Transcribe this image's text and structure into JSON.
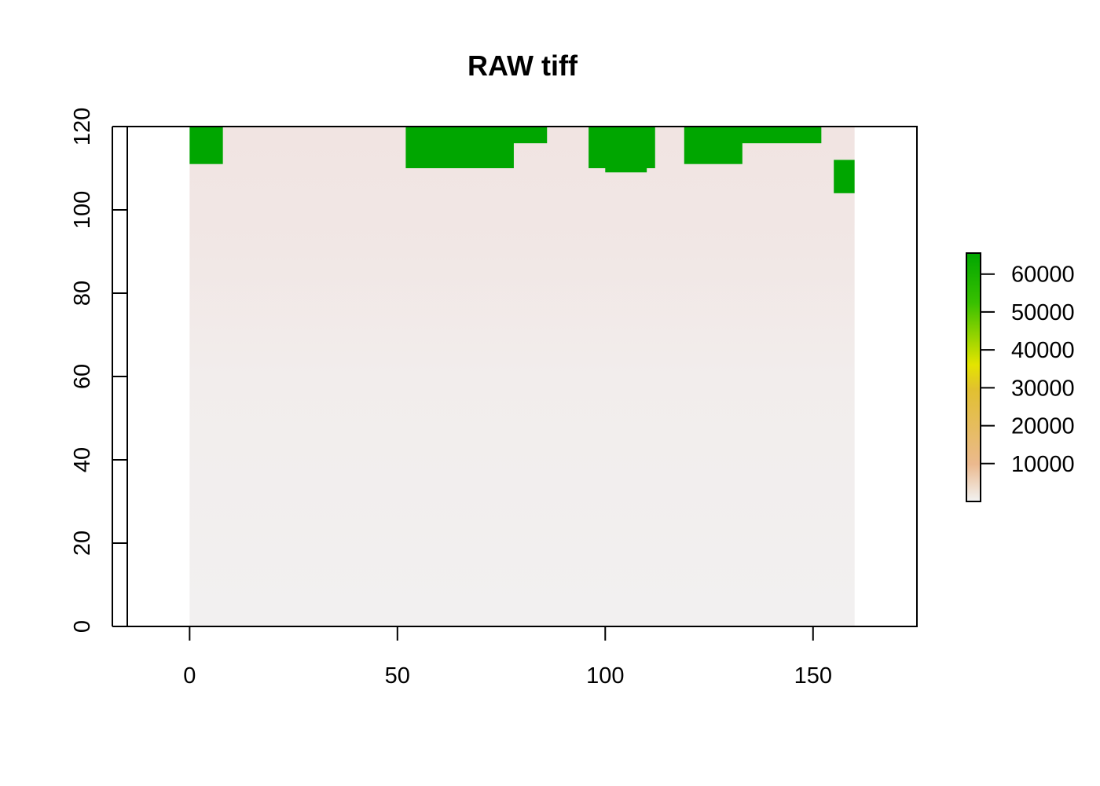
{
  "chart_data": {
    "type": "heatmap",
    "title": "RAW tiff",
    "xlabel": "",
    "ylabel": "",
    "xlim": [
      -15,
      175
    ],
    "ylim": [
      0,
      120
    ],
    "x_ticks": [
      0,
      50,
      100,
      150
    ],
    "y_ticks": [
      0,
      20,
      40,
      60,
      80,
      100,
      120
    ],
    "raster_extent": {
      "x": [
        0,
        160
      ],
      "y": [
        0,
        120
      ]
    },
    "grid": false,
    "legend": {
      "placement": "right",
      "ticks": [
        10000,
        20000,
        30000,
        40000,
        50000,
        60000
      ],
      "range": [
        0,
        65535
      ]
    },
    "colors": {
      "low": "#F2F2F2",
      "pale": "#F0E4E2",
      "mid_low": "#EBB98E",
      "mid": "#E1C030",
      "mid_high": "#E4E400",
      "high": "#00A600"
    },
    "background_value": 3500,
    "upper_band_value": 5500,
    "saturated_value": 65535,
    "saturated_regions": [
      {
        "x": [
          0,
          8
        ],
        "y": [
          111,
          120
        ]
      },
      {
        "x": [
          52,
          78
        ],
        "y": [
          110,
          120
        ]
      },
      {
        "x": [
          54,
          86
        ],
        "y": [
          116,
          120
        ]
      },
      {
        "x": [
          96,
          112
        ],
        "y": [
          110,
          120
        ]
      },
      {
        "x": [
          100,
          110
        ],
        "y": [
          109,
          111
        ]
      },
      {
        "x": [
          119,
          133
        ],
        "y": [
          111,
          120
        ]
      },
      {
        "x": [
          126,
          152
        ],
        "y": [
          116,
          120
        ]
      },
      {
        "x": [
          155,
          160
        ],
        "y": [
          104,
          112
        ]
      }
    ]
  }
}
